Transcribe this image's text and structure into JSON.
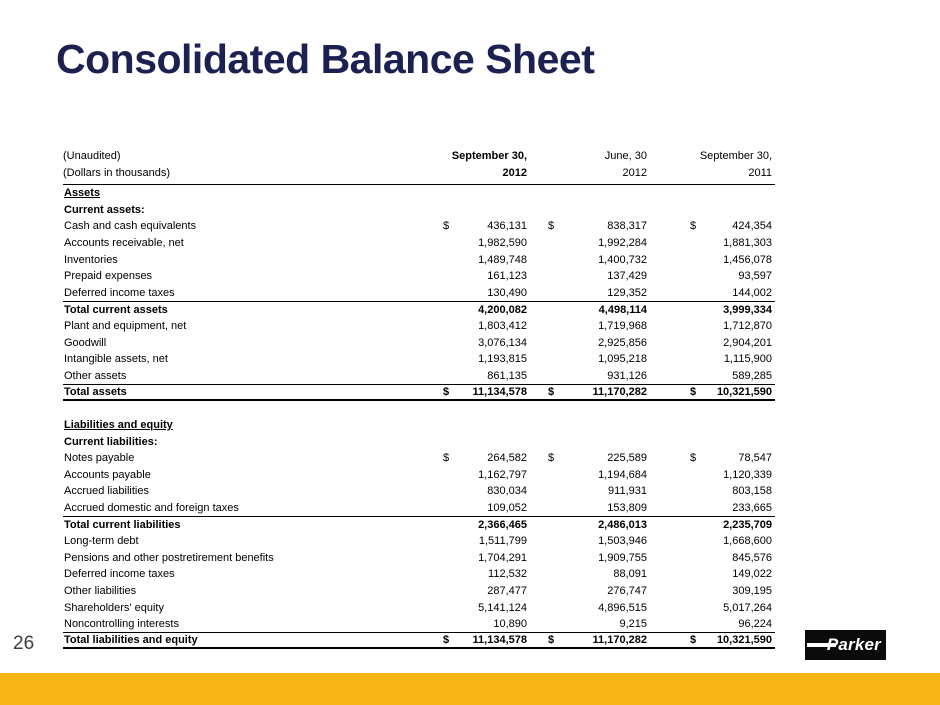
{
  "slide": {
    "title": "Consolidated Balance Sheet",
    "page_number": "26",
    "logo_text": "Parker"
  },
  "colors": {
    "title_navy": "#1B2150",
    "accent_yellow": "#FBB416",
    "logo_black": "#0B0B0B",
    "rule_black": "#000000"
  },
  "table": {
    "note_line1": "(Unaudited)",
    "note_line2": "(Dollars in thousands)",
    "columns": [
      {
        "line1": "September 30,",
        "line2": "2012"
      },
      {
        "line1": "June, 30",
        "line2": "2012"
      },
      {
        "line1": "September 30,",
        "line2": "2011"
      }
    ],
    "sections": [
      {
        "heading": "Assets",
        "subheading": "Current assets:",
        "rows": [
          {
            "label": "Cash and cash equivalents",
            "values": [
              "436,131",
              "838,317",
              "424,354"
            ],
            "dollar": true
          },
          {
            "label": "Accounts receivable, net",
            "values": [
              "1,982,590",
              "1,992,284",
              "1,881,303"
            ]
          },
          {
            "label": "Inventories",
            "values": [
              "1,489,748",
              "1,400,732",
              "1,456,078"
            ]
          },
          {
            "label": "Prepaid expenses",
            "values": [
              "161,123",
              "137,429",
              "93,597"
            ]
          },
          {
            "label": "Deferred income taxes",
            "values": [
              "130,490",
              "129,352",
              "144,002"
            ]
          },
          {
            "label": "Total current assets",
            "values": [
              "4,200,082",
              "4,498,114",
              "3,999,334"
            ],
            "bold": true,
            "rule_above": true
          },
          {
            "label": "Plant and equipment, net",
            "values": [
              "1,803,412",
              "1,719,968",
              "1,712,870"
            ]
          },
          {
            "label": "Goodwill",
            "values": [
              "3,076,134",
              "2,925,856",
              "2,904,201"
            ]
          },
          {
            "label": "Intangible assets, net",
            "values": [
              "1,193,815",
              "1,095,218",
              "1,115,900"
            ]
          },
          {
            "label": "Other assets",
            "values": [
              "861,135",
              "931,126",
              "589,285"
            ]
          },
          {
            "label": "Total assets",
            "values": [
              "11,134,578",
              "11,170,282",
              "10,321,590"
            ],
            "dollar": true,
            "bold": true,
            "rule_above": true,
            "thick_below": true
          }
        ]
      },
      {
        "heading": "Liabilities and equity",
        "subheading": "Current liabilities:",
        "rows": [
          {
            "label": "Notes payable",
            "values": [
              "264,582",
              "225,589",
              "78,547"
            ],
            "dollar": true
          },
          {
            "label": "Accounts payable",
            "values": [
              "1,162,797",
              "1,194,684",
              "1,120,339"
            ]
          },
          {
            "label": "Accrued liabilities",
            "values": [
              "830,034",
              "911,931",
              "803,158"
            ]
          },
          {
            "label": "Accrued domestic and foreign taxes",
            "values": [
              "109,052",
              "153,809",
              "233,665"
            ]
          },
          {
            "label": "Total current liabilities",
            "values": [
              "2,366,465",
              "2,486,013",
              "2,235,709"
            ],
            "bold": true,
            "rule_above": true
          },
          {
            "label": "Long-term debt",
            "values": [
              "1,511,799",
              "1,503,946",
              "1,668,600"
            ]
          },
          {
            "label": "Pensions and other postretirement benefits",
            "values": [
              "1,704,291",
              "1,909,755",
              "845,576"
            ]
          },
          {
            "label": "Deferred income taxes",
            "values": [
              "112,532",
              "88,091",
              "149,022"
            ]
          },
          {
            "label": "Other liabilities",
            "values": [
              "287,477",
              "276,747",
              "309,195"
            ]
          },
          {
            "label": "Shareholders' equity",
            "values": [
              "5,141,124",
              "4,896,515",
              "5,017,264"
            ]
          },
          {
            "label": "Noncontrolling interests",
            "values": [
              "10,890",
              "9,215",
              "96,224"
            ]
          },
          {
            "label": "Total liabilities and equity",
            "values": [
              "11,134,578",
              "11,170,282",
              "10,321,590"
            ],
            "dollar": true,
            "bold": true,
            "rule_above": true,
            "thick_below": true
          }
        ]
      }
    ]
  }
}
